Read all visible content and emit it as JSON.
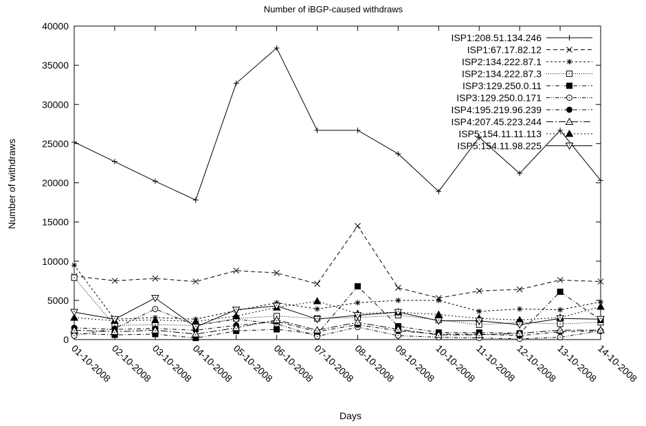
{
  "chart_data": {
    "type": "line",
    "title": "Number of iBGP-caused withdraws",
    "xlabel": "Days",
    "ylabel": "Number of withdraws",
    "ylim": [
      0,
      40000
    ],
    "yticks": [
      "0",
      "5000",
      "10000",
      "15000",
      "20000",
      "25000",
      "30000",
      "35000",
      "40000"
    ],
    "categories": [
      "01-10-2008",
      "02-10-2008",
      "03-10-2008",
      "04-10-2008",
      "05-10-2008",
      "06-10-2008",
      "07-10-2008",
      "08-10-2008",
      "09-10-2008",
      "10-10-2008",
      "11-10-2008",
      "12-10-2008",
      "13-10-2008",
      "14-10-2008"
    ],
    "legend_position": "top-right",
    "grid": false,
    "series": [
      {
        "name": "ISP1:208.51.134.246",
        "marker": "plus",
        "dash": "solid",
        "values": [
          25200,
          22700,
          20200,
          17800,
          32700,
          37200,
          26700,
          26700,
          23700,
          18900,
          25800,
          21200,
          26700,
          20300
        ]
      },
      {
        "name": "ISP1:67.17.82.12",
        "marker": "cross",
        "dash": "dashed",
        "values": [
          8100,
          7500,
          7800,
          7400,
          8800,
          8500,
          7100,
          14500,
          6600,
          5300,
          6200,
          6400,
          7600,
          7400
        ]
      },
      {
        "name": "ISP2:134.222.87.1",
        "marker": "star",
        "dash": "dashed-short",
        "values": [
          9500,
          2600,
          2800,
          2600,
          3700,
          4700,
          3900,
          4700,
          5000,
          5000,
          3600,
          3900,
          3800,
          4800
        ]
      },
      {
        "name": "ISP2:134.222.87.3",
        "marker": "open-square",
        "dash": "dotted",
        "values": [
          7900,
          1800,
          1900,
          1800,
          2700,
          3000,
          2700,
          2800,
          3100,
          2500,
          1900,
          2200,
          2000,
          2200
        ]
      },
      {
        "name": "ISP3:129.250.0.11",
        "marker": "filled-square",
        "dash": "dash-dot",
        "values": [
          800,
          600,
          700,
          200,
          1100,
          1300,
          700,
          6800,
          1700,
          900,
          900,
          800,
          6100,
          2500
        ]
      },
      {
        "name": "ISP3:129.250.0.171",
        "marker": "open-circle",
        "dash": "dash-dot-dot",
        "values": [
          500,
          1400,
          3900,
          1800,
          2600,
          2000,
          400,
          1600,
          500,
          300,
          200,
          100,
          300,
          1100
        ]
      },
      {
        "name": "ISP4:195.219.96.239",
        "marker": "filled-circle",
        "dash": "dash-dot",
        "values": [
          1500,
          1300,
          1400,
          1200,
          1800,
          2300,
          1000,
          1900,
          1100,
          700,
          700,
          500,
          1000,
          1100
        ]
      },
      {
        "name": "ISP4:207.45.223.244",
        "marker": "open-triangle",
        "dash": "dash-dot-long",
        "values": [
          1200,
          1000,
          1200,
          700,
          1500,
          2500,
          1200,
          2200,
          1300,
          600,
          600,
          800,
          1200,
          1200
        ]
      },
      {
        "name": "ISP5:154.11.11.113",
        "marker": "filled-triangle",
        "dash": "dotted-fine",
        "values": [
          2800,
          2400,
          2500,
          2300,
          3000,
          4100,
          4900,
          3300,
          3500,
          3200,
          2700,
          2500,
          2800,
          4200
        ]
      },
      {
        "name": "ISP5:154.11.98.225",
        "marker": "open-inverted-triangle",
        "dash": "solid",
        "values": [
          3500,
          2600,
          5300,
          1600,
          3800,
          4300,
          2600,
          3100,
          3500,
          2400,
          2400,
          1900,
          2700,
          2600
        ]
      }
    ]
  }
}
